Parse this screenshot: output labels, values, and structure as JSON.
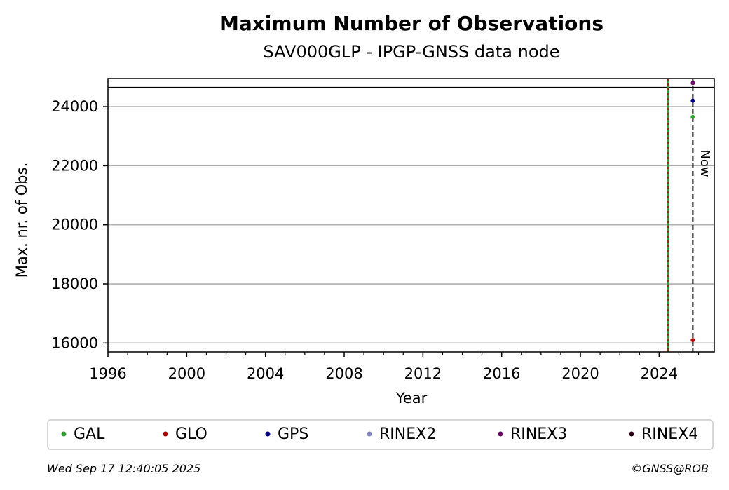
{
  "chart_data": {
    "type": "scatter",
    "title": "Maximum Number of Observations",
    "subtitle": "SAV000GLP - IPGP-GNSS data node",
    "xlabel": "Year",
    "ylabel": "Max. nr. of Obs.",
    "xlim": [
      1996,
      2026.8
    ],
    "ylim": [
      15700,
      24950
    ],
    "x_ticks": [
      1996,
      2000,
      2004,
      2008,
      2012,
      2016,
      2020,
      2024
    ],
    "y_ticks": [
      16000,
      18000,
      20000,
      22000,
      24000
    ],
    "grid": "y",
    "now_line": {
      "x": 2025.71,
      "label": "Now"
    },
    "vertical_markers": [
      {
        "x": 2024.45,
        "colors": [
          "#2ca02c",
          "#c00000"
        ]
      }
    ],
    "top_reference_line": 24650,
    "series": [
      {
        "name": "GAL",
        "color": "#2ca02c",
        "points": [
          [
            2025.71,
            23650
          ]
        ]
      },
      {
        "name": "GLO",
        "color": "#b00000",
        "points": [
          [
            2025.71,
            16100
          ]
        ]
      },
      {
        "name": "GPS",
        "color": "#00008b",
        "points": [
          [
            2025.71,
            24200
          ]
        ]
      },
      {
        "name": "RINEX2",
        "color": "#8080c0",
        "points": []
      },
      {
        "name": "RINEX3",
        "color": "#6a0066",
        "points": [
          [
            2025.71,
            24800
          ]
        ]
      },
      {
        "name": "RINEX4",
        "color": "#2a0016",
        "points": []
      }
    ]
  },
  "legend": [
    "GAL",
    "GLO",
    "GPS",
    "RINEX2",
    "RINEX3",
    "RINEX4"
  ],
  "footer": {
    "timestamp": "Wed Sep 17 12:40:05 2025",
    "copyright": "©GNSS@ROB"
  }
}
